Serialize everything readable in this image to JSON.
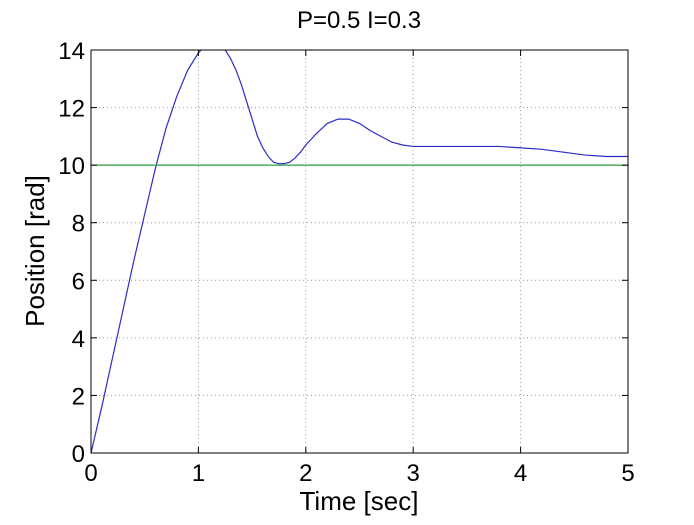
{
  "chart_data": {
    "type": "line",
    "title": "P=0.5 I=0.3",
    "xlabel": "Time [sec]",
    "ylabel": "Position [rad]",
    "xlim": [
      0,
      5
    ],
    "ylim": [
      0,
      14
    ],
    "xticks": [
      "0",
      "1",
      "2",
      "3",
      "4",
      "5"
    ],
    "yticks": [
      "0",
      "2",
      "4",
      "6",
      "8",
      "10",
      "12",
      "14"
    ],
    "grid": true,
    "series": [
      {
        "color": "#2c2cc8",
        "x": [
          0,
          0.1,
          0.2,
          0.3,
          0.4,
          0.5,
          0.6,
          0.7,
          0.8,
          0.9,
          1.0,
          1.05,
          1.1,
          1.15,
          1.2,
          1.25,
          1.3,
          1.35,
          1.4,
          1.45,
          1.5,
          1.55,
          1.6,
          1.65,
          1.7,
          1.75,
          1.8,
          1.85,
          1.9,
          1.95,
          2.0,
          2.05,
          2.1,
          2.2,
          2.3,
          2.4,
          2.5,
          2.6,
          2.7,
          2.8,
          2.9,
          3.0,
          3.1,
          3.2,
          3.4,
          3.6,
          3.8,
          4.0,
          4.2,
          4.4,
          4.6,
          4.8,
          5.0
        ],
        "y": [
          0,
          1.6,
          3.3,
          5.0,
          6.7,
          8.3,
          9.9,
          11.3,
          12.4,
          13.3,
          13.9,
          14.1,
          14.2,
          14.2,
          14.1,
          14.0,
          13.7,
          13.3,
          12.8,
          12.2,
          11.6,
          11.0,
          10.6,
          10.3,
          10.1,
          10.05,
          10.05,
          10.1,
          10.25,
          10.45,
          10.7,
          10.9,
          11.1,
          11.45,
          11.6,
          11.6,
          11.45,
          11.2,
          11.0,
          10.8,
          10.7,
          10.65,
          10.65,
          10.65,
          10.65,
          10.65,
          10.65,
          10.6,
          10.55,
          10.45,
          10.35,
          10.3,
          10.3
        ]
      },
      {
        "color": "#2e9e4a",
        "x": [
          0,
          5
        ],
        "y": [
          10,
          10
        ]
      }
    ]
  }
}
